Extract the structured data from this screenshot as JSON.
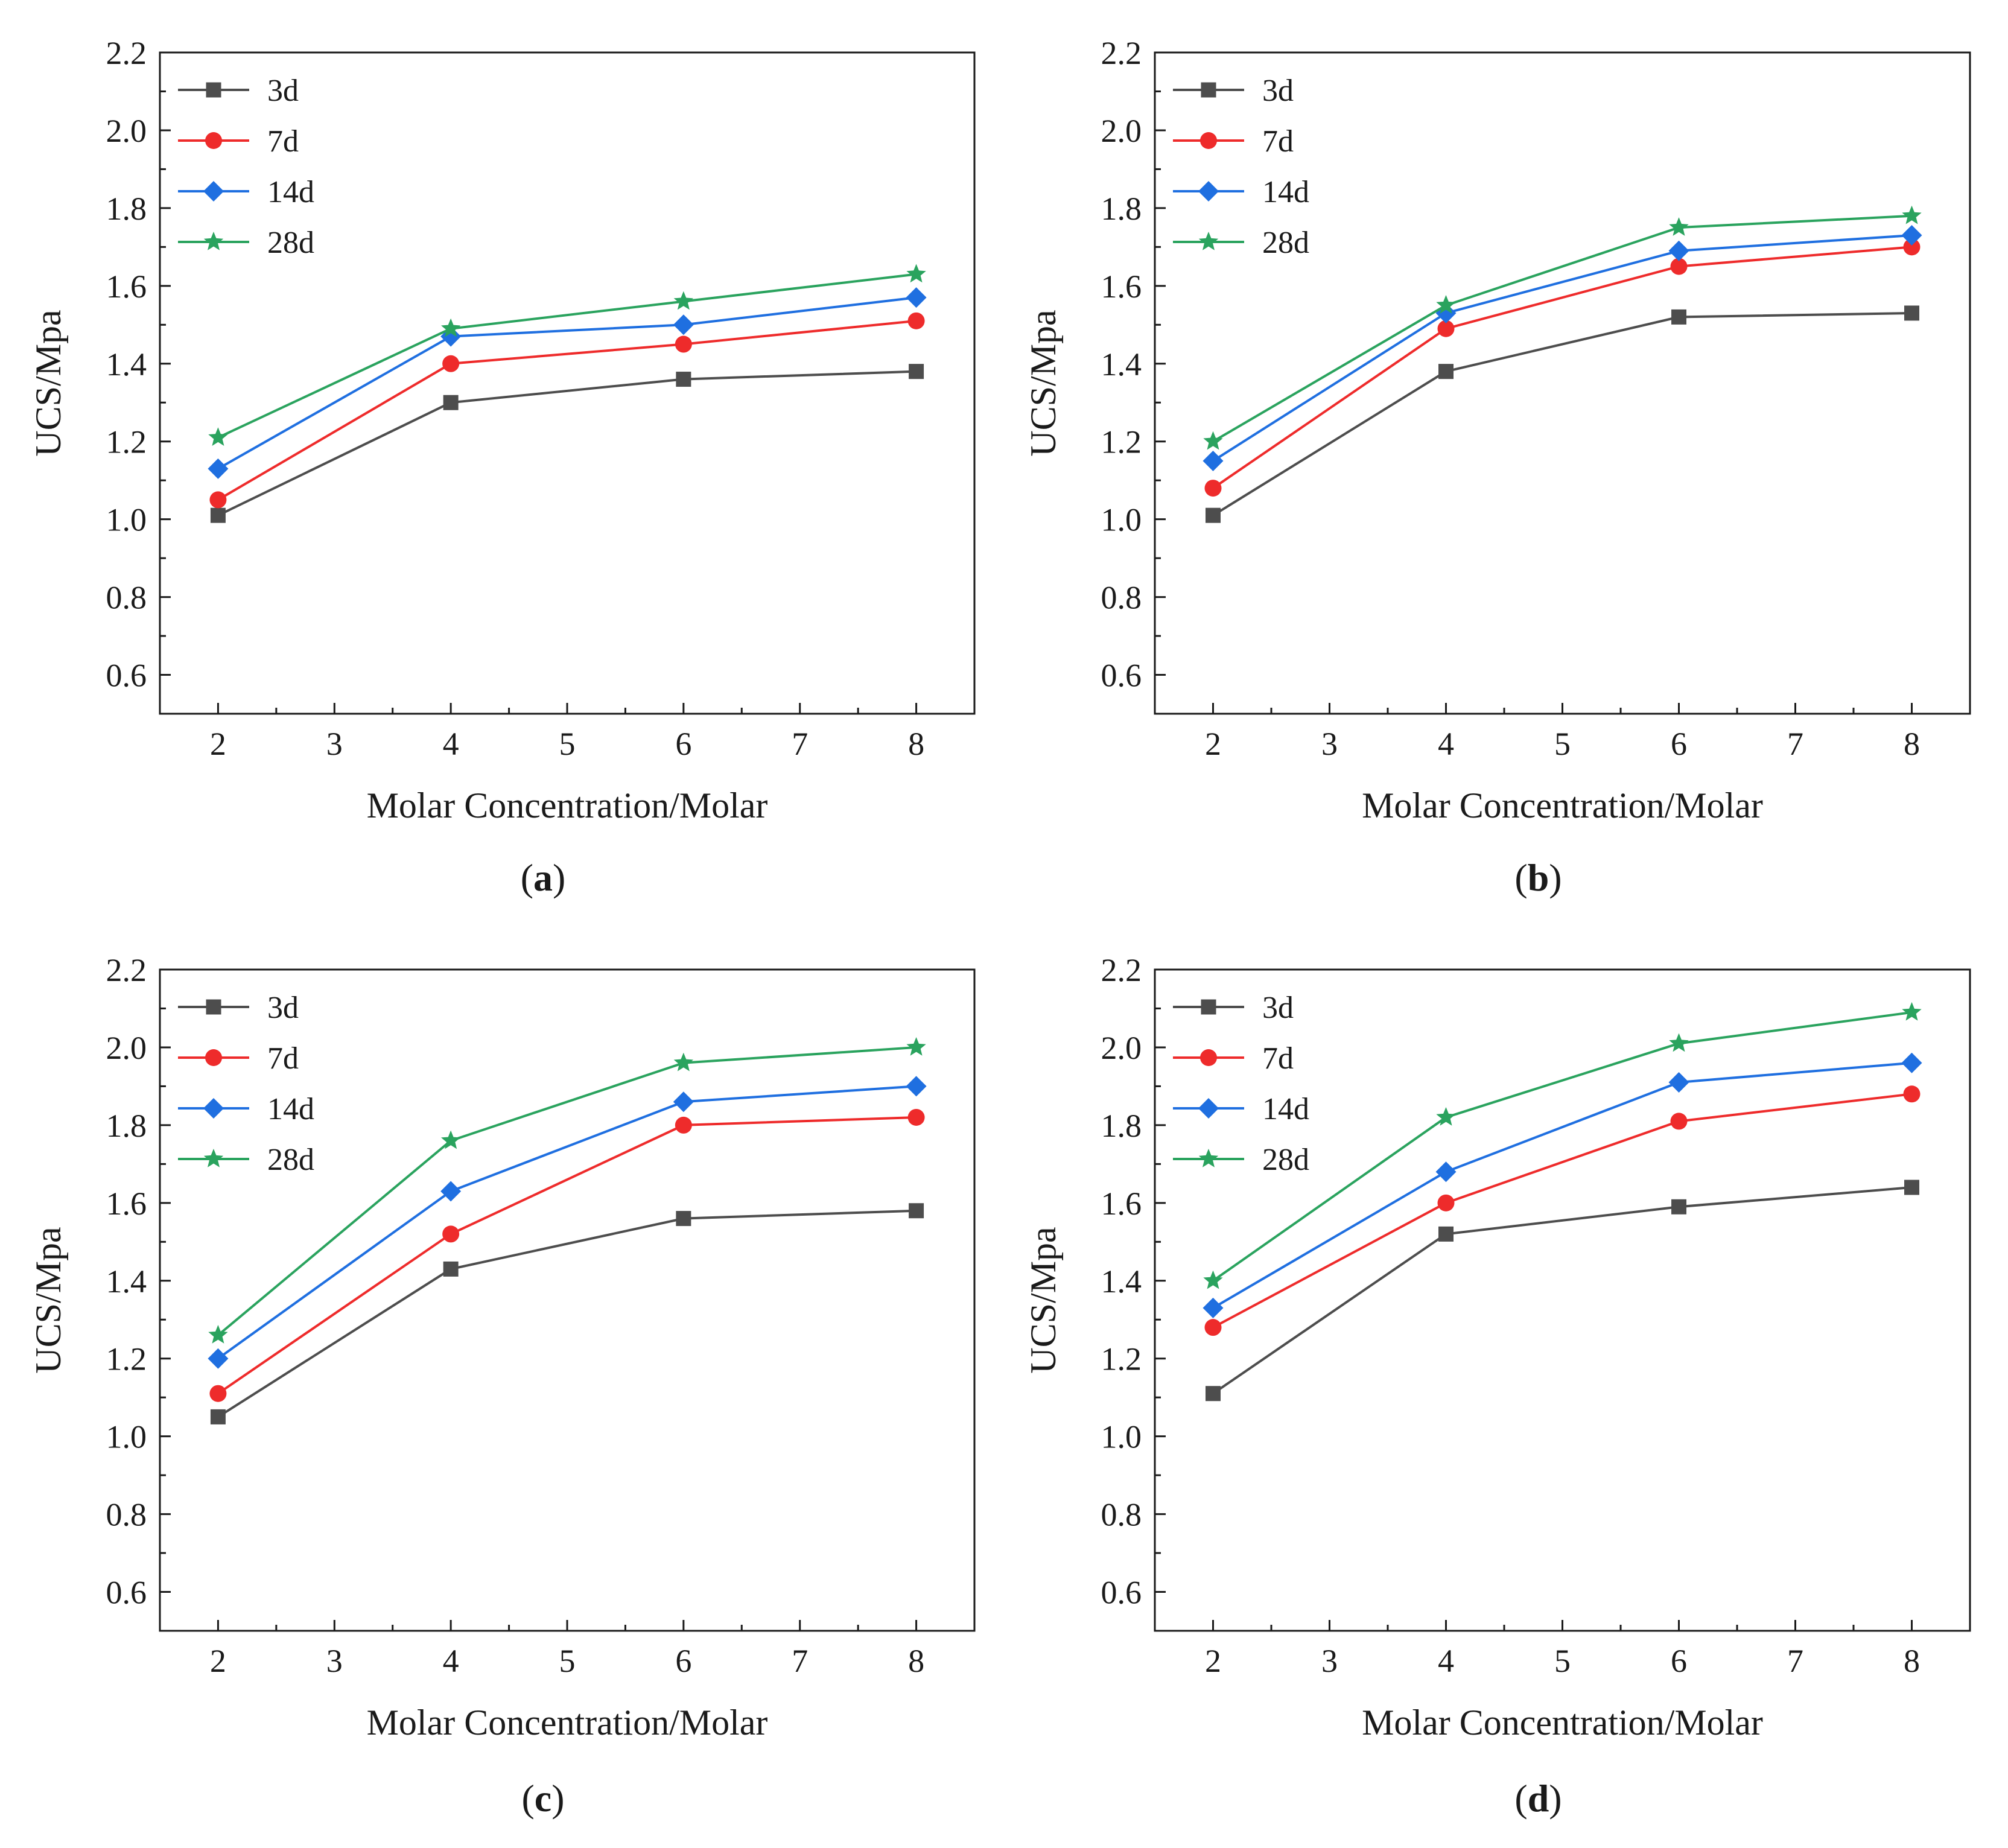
{
  "series_colors": {
    "3d": "#4d4d4d",
    "7d": "#ee2b2b",
    "14d": "#1f6fe0",
    "28d": "#2aa35e"
  },
  "series_markers": {
    "3d": "square",
    "7d": "circle",
    "14d": "diamond",
    "28d": "star"
  },
  "chart_data": [
    {
      "type": "line",
      "panel_label": "a",
      "xlabel": "Molar Concentration/Molar",
      "ylabel": "UCS/Mpa",
      "xlim": [
        1.5,
        8.5
      ],
      "ylim": [
        0.5,
        2.2
      ],
      "xticks": [
        2,
        3,
        4,
        5,
        6,
        7,
        8
      ],
      "yticks": [
        0.6,
        0.8,
        1.0,
        1.2,
        1.4,
        1.6,
        1.8,
        2.0,
        2.2
      ],
      "ytick_labels": [
        "0.6",
        "0.8",
        "1.0",
        "1.2",
        "1.4",
        "1.6",
        "1.8",
        "2.0",
        "2.2"
      ],
      "legend_position": "top-left",
      "x": [
        2,
        4,
        6,
        8
      ],
      "series": [
        {
          "name": "3d",
          "values": [
            1.01,
            1.3,
            1.36,
            1.38
          ]
        },
        {
          "name": "7d",
          "values": [
            1.05,
            1.4,
            1.45,
            1.51
          ]
        },
        {
          "name": "14d",
          "values": [
            1.13,
            1.47,
            1.5,
            1.57
          ]
        },
        {
          "name": "28d",
          "values": [
            1.21,
            1.49,
            1.56,
            1.63
          ]
        }
      ]
    },
    {
      "type": "line",
      "panel_label": "b",
      "xlabel": "Molar Concentration/Molar",
      "ylabel": "UCS/Mpa",
      "xlim": [
        1.5,
        8.5
      ],
      "ylim": [
        0.5,
        2.2
      ],
      "xticks": [
        2,
        3,
        4,
        5,
        6,
        7,
        8
      ],
      "yticks": [
        0.6,
        0.8,
        1.0,
        1.2,
        1.4,
        1.6,
        1.8,
        2.0,
        2.2
      ],
      "ytick_labels": [
        "0.6",
        "0.8",
        "1.0",
        "1.2",
        "1.4",
        "1.6",
        "1.8",
        "2.0",
        "2.2"
      ],
      "legend_position": "top-left",
      "x": [
        2,
        4,
        6,
        8
      ],
      "series": [
        {
          "name": "3d",
          "values": [
            1.01,
            1.38,
            1.52,
            1.53
          ]
        },
        {
          "name": "7d",
          "values": [
            1.08,
            1.49,
            1.65,
            1.7
          ]
        },
        {
          "name": "14d",
          "values": [
            1.15,
            1.53,
            1.69,
            1.73
          ]
        },
        {
          "name": "28d",
          "values": [
            1.2,
            1.55,
            1.75,
            1.78
          ]
        }
      ]
    },
    {
      "type": "line",
      "panel_label": "c",
      "xlabel": "Molar Concentration/Molar",
      "ylabel": "UCS/Mpa",
      "xlim": [
        1.5,
        8.5
      ],
      "ylim": [
        0.5,
        2.2
      ],
      "xticks": [
        2,
        3,
        4,
        5,
        6,
        7,
        8
      ],
      "yticks": [
        0.6,
        0.8,
        1.0,
        1.2,
        1.4,
        1.6,
        1.8,
        2.0,
        2.2
      ],
      "ytick_labels": [
        "0.6",
        "0.8",
        "1.0",
        "1.2",
        "1.4",
        "1.6",
        "1.8",
        "2.0",
        "2.2"
      ],
      "legend_position": "top-left",
      "x": [
        2,
        4,
        6,
        8
      ],
      "series": [
        {
          "name": "3d",
          "values": [
            1.05,
            1.43,
            1.56,
            1.58
          ]
        },
        {
          "name": "7d",
          "values": [
            1.11,
            1.52,
            1.8,
            1.82
          ]
        },
        {
          "name": "14d",
          "values": [
            1.2,
            1.63,
            1.86,
            1.9
          ]
        },
        {
          "name": "28d",
          "values": [
            1.26,
            1.76,
            1.96,
            2.0
          ]
        }
      ]
    },
    {
      "type": "line",
      "panel_label": "d",
      "xlabel": "Molar Concentration/Molar",
      "ylabel": "UCS/Mpa",
      "xlim": [
        1.5,
        8.5
      ],
      "ylim": [
        0.5,
        2.2
      ],
      "xticks": [
        2,
        3,
        4,
        5,
        6,
        7,
        8
      ],
      "yticks": [
        0.6,
        0.8,
        1.0,
        1.2,
        1.4,
        1.6,
        1.8,
        2.0,
        2.2
      ],
      "ytick_labels": [
        "0.6",
        "0.8",
        "1.0",
        "1.2",
        "1.4",
        "1.6",
        "1.8",
        "2.0",
        "2.2"
      ],
      "legend_position": "top-left",
      "x": [
        2,
        4,
        6,
        8
      ],
      "series": [
        {
          "name": "3d",
          "values": [
            1.11,
            1.52,
            1.59,
            1.64
          ]
        },
        {
          "name": "7d",
          "values": [
            1.28,
            1.6,
            1.81,
            1.88
          ]
        },
        {
          "name": "14d",
          "values": [
            1.33,
            1.68,
            1.91,
            1.96
          ]
        },
        {
          "name": "28d",
          "values": [
            1.4,
            1.82,
            2.01,
            2.09
          ]
        }
      ]
    }
  ]
}
